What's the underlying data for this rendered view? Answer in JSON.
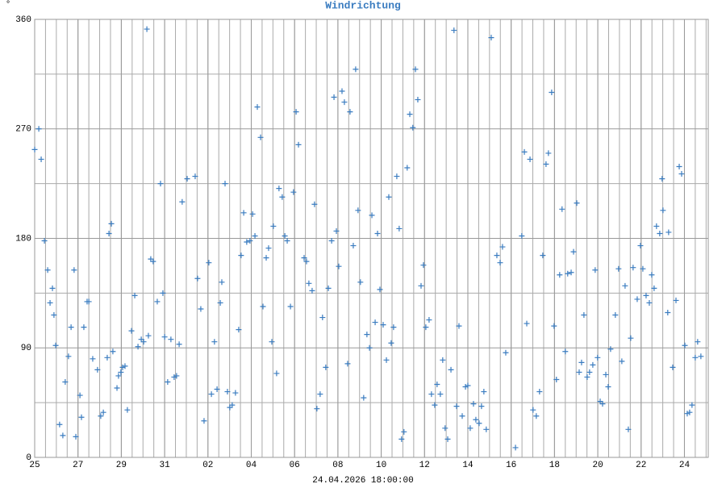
{
  "chart_data": {
    "type": "scatter",
    "title": "Windrichtung",
    "y_unit": "°",
    "x_label": "24.04.2026 18:00:00",
    "color": "#3a7cc0",
    "grid": true,
    "xlim": [
      0,
      31.1
    ],
    "ylim": [
      0,
      360
    ],
    "xticks": [
      {
        "value": 0,
        "label": "25"
      },
      {
        "value": 2,
        "label": "27"
      },
      {
        "value": 4,
        "label": "29"
      },
      {
        "value": 6,
        "label": "31"
      },
      {
        "value": 8,
        "label": "02"
      },
      {
        "value": 10,
        "label": "04"
      },
      {
        "value": 12,
        "label": "06"
      },
      {
        "value": 14,
        "label": "08"
      },
      {
        "value": 16,
        "label": "10"
      },
      {
        "value": 18,
        "label": "12"
      },
      {
        "value": 20,
        "label": "14"
      },
      {
        "value": 22,
        "label": "16"
      },
      {
        "value": 24,
        "label": "18"
      },
      {
        "value": 26,
        "label": "20"
      },
      {
        "value": 28,
        "label": "22"
      },
      {
        "value": 30,
        "label": "24"
      }
    ],
    "yticks": [
      0,
      90,
      180,
      270,
      360
    ],
    "x": [
      0,
      0.19,
      0.3,
      0.45,
      0.6,
      0.71,
      0.82,
      0.89,
      0.97,
      1.15,
      1.3,
      1.41,
      1.56,
      1.68,
      1.82,
      1.9,
      2.09,
      2.16,
      2.27,
      2.42,
      2.5,
      2.68,
      2.9,
      3.05,
      3.17,
      3.35,
      3.43,
      3.54,
      3.61,
      3.8,
      3.87,
      3.98,
      4.06,
      4.17,
      4.28,
      4.47,
      4.62,
      4.77,
      4.92,
      5.03,
      5.18,
      5.25,
      5.36,
      5.47,
      5.66,
      5.81,
      5.92,
      6.0,
      6.14,
      6.29,
      6.44,
      6.55,
      6.67,
      6.81,
      7.04,
      7.41,
      7.52,
      7.67,
      7.82,
      8.04,
      8.16,
      8.3,
      8.42,
      8.57,
      8.64,
      8.79,
      8.9,
      9.01,
      9.12,
      9.27,
      9.42,
      9.53,
      9.65,
      9.79,
      9.94,
      10.06,
      10.17,
      10.28,
      10.43,
      10.54,
      10.69,
      10.8,
      10.95,
      11.02,
      11.17,
      11.28,
      11.43,
      11.55,
      11.66,
      11.81,
      11.95,
      12.07,
      12.18,
      12.44,
      12.55,
      12.66,
      12.81,
      12.92,
      13.03,
      13.18,
      13.29,
      13.44,
      13.56,
      13.71,
      13.82,
      13.93,
      14.04,
      14.19,
      14.3,
      14.45,
      14.56,
      14.71,
      14.82,
      14.93,
      15.04,
      15.19,
      15.34,
      15.46,
      15.57,
      15.72,
      15.83,
      15.94,
      16.09,
      16.24,
      16.35,
      16.46,
      16.57,
      16.72,
      16.83,
      16.94,
      17.05,
      17.2,
      17.32,
      17.46,
      17.58,
      17.69,
      17.84,
      17.95,
      18.06,
      18.21,
      18.32,
      18.47,
      18.58,
      18.73,
      18.84,
      18.95,
      19.07,
      19.22,
      19.36,
      19.48,
      19.59,
      19.74,
      19.89,
      20.0,
      20.11,
      20.26,
      20.37,
      20.52,
      20.63,
      20.74,
      20.85,
      21.08,
      21.34,
      21.49,
      21.6,
      21.75,
      22.2,
      22.49,
      22.61,
      22.72,
      22.87,
      23.01,
      23.16,
      23.31,
      23.46,
      23.61,
      23.72,
      23.87,
      23.98,
      24.09,
      24.24,
      24.35,
      24.5,
      24.61,
      24.77,
      24.88,
      25.03,
      25.14,
      25.25,
      25.36,
      25.51,
      25.62,
      25.77,
      25.88,
      25.99,
      26.11,
      26.22,
      26.37,
      26.48,
      26.59,
      26.81,
      26.96,
      27.11,
      27.26,
      27.41,
      27.52,
      27.63,
      27.82,
      27.97,
      28.08,
      28.23,
      28.38,
      28.49,
      28.6,
      28.71,
      28.86,
      28.97,
      29.01,
      29.23,
      29.27,
      29.46,
      29.61,
      29.76,
      29.87,
      30.02,
      30.13,
      30.24,
      30.35,
      30.5,
      30.61,
      30.76
    ],
    "values": [
      253,
      270,
      245,
      178,
      154,
      127,
      139,
      117,
      92,
      27,
      18,
      62,
      83,
      107,
      154,
      17,
      51,
      33,
      107,
      128,
      128,
      81,
      72,
      34,
      37,
      82,
      184,
      192,
      87,
      57,
      67,
      70,
      74,
      75,
      39,
      104,
      133,
      91,
      97,
      95,
      352,
      100,
      163,
      161,
      128,
      225,
      135,
      99,
      62,
      97,
      66,
      67,
      93,
      210,
      229,
      231,
      147,
      122,
      30,
      160,
      52,
      95,
      56,
      127,
      144,
      225,
      54,
      41,
      43,
      53,
      105,
      166,
      201,
      177,
      178,
      200,
      182,
      288,
      263,
      124,
      164,
      172,
      95,
      190,
      69,
      221,
      214,
      182,
      178,
      124,
      218,
      284,
      257,
      164,
      161,
      143,
      137,
      208,
      40,
      52,
      115,
      74,
      139,
      178,
      296,
      186,
      157,
      301,
      292,
      77,
      284,
      174,
      319,
      203,
      144,
      49,
      101,
      90,
      199,
      111,
      184,
      138,
      109,
      80,
      214,
      94,
      107,
      231,
      188,
      15,
      21,
      238,
      282,
      271,
      319,
      294,
      141,
      158,
      107,
      113,
      52,
      43,
      60,
      52,
      80,
      24,
      15,
      72,
      351,
      42,
      108,
      34,
      58,
      59,
      24,
      44,
      31,
      28,
      42,
      54,
      23,
      345,
      166,
      160,
      173,
      86,
      8,
      182,
      251,
      110,
      245,
      39,
      34,
      54,
      166,
      241,
      250,
      300,
      108,
      64,
      150,
      204,
      87,
      151,
      152,
      169,
      209,
      70,
      78,
      117,
      66,
      70,
      76,
      154,
      82,
      46,
      44,
      68,
      58,
      89,
      117,
      155,
      79,
      141,
      23,
      98,
      156,
      130,
      174,
      155,
      133,
      127,
      150,
      139,
      190,
      184,
      229,
      203,
      119,
      185,
      74,
      129,
      239,
      233,
      92,
      36,
      37,
      43,
      82,
      95,
      83
    ]
  }
}
